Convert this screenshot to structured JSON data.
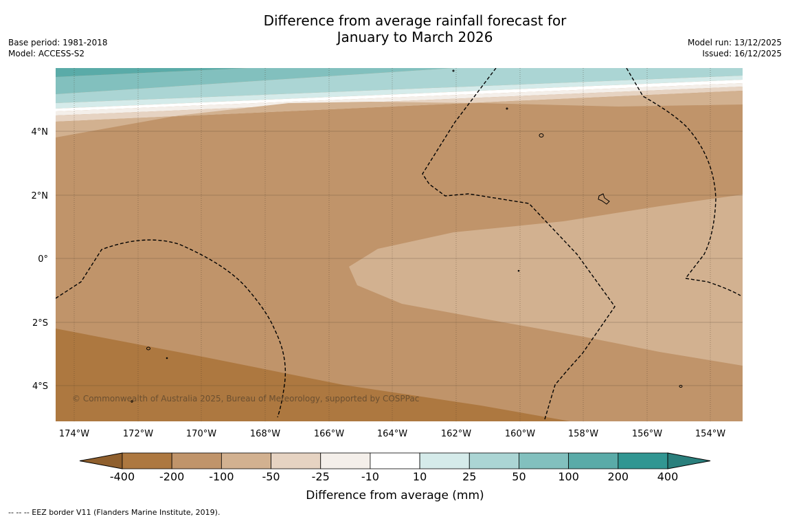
{
  "title": {
    "line1": "Difference from average rainfall forecast for",
    "line2": "January to March 2026"
  },
  "meta_left": {
    "base_period": "Base period: 1981-2018",
    "model": "Model: ACCESS-S2"
  },
  "meta_right": {
    "model_run": "Model run: 13/12/2025",
    "issued": "Issued: 16/12/2025"
  },
  "map": {
    "lat_labels": [
      "4°N",
      "2°N",
      "0°",
      "2°S",
      "4°S"
    ],
    "lon_labels": [
      "174°W",
      "172°W",
      "170°W",
      "168°W",
      "166°W",
      "164°W",
      "162°W",
      "160°W",
      "158°W",
      "156°W",
      "154°W"
    ],
    "copyright": "© Commonwealth of Australia 2025, Bureau of Meteorology, supported by COSPPac"
  },
  "colorbar": {
    "tick_labels": [
      "-400",
      "-200",
      "-100",
      "-50",
      "-25",
      "-10",
      "10",
      "25",
      "50",
      "100",
      "200",
      "400"
    ],
    "title": "Difference from average (mm)",
    "colors": {
      "below_-400": "#8f5f2d",
      "-400_-200": "#ad7840",
      "-200_-100": "#c0946a",
      "-100_-50": "#d2b190",
      "-50_-25": "#e6d3c2",
      "-25_-10": "#f4efea",
      "-10_10": "#ffffff",
      "10_25": "#d5ebea",
      "25_50": "#abd5d4",
      "50_100": "#82c0be",
      "100_200": "#5aaba8",
      "200_400": "#319692",
      "above_400": "#2a7f7c"
    }
  },
  "footnote": "--  --  -- EEZ border V11 (Flanders Marine Institute, 2019)."
}
